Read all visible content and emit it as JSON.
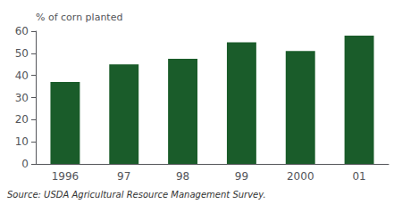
{
  "chart_data": {
    "type": "bar",
    "categories": [
      "1996",
      "97",
      "98",
      "99",
      "2000",
      "01"
    ],
    "values": [
      37,
      45,
      47.5,
      55,
      51,
      58
    ],
    "color": "#1a5c2a",
    "ylabel": "% of corn planted",
    "annotation": "Source: USDA Agricultural Resource Management Survey.",
    "ylim": [
      0,
      60
    ],
    "yticks": [
      0,
      10,
      20,
      30,
      40,
      50,
      60
    ],
    "grid": false
  }
}
